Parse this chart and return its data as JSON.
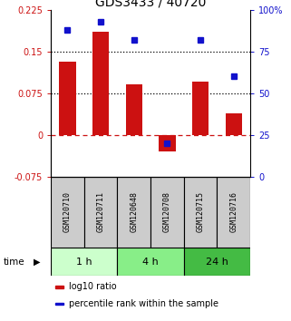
{
  "title": "GDS3433 / 40720",
  "samples": [
    "GSM120710",
    "GSM120711",
    "GSM120648",
    "GSM120708",
    "GSM120715",
    "GSM120716"
  ],
  "log10_ratio": [
    0.132,
    0.185,
    0.09,
    -0.03,
    0.095,
    0.038
  ],
  "percentile_rank": [
    88,
    93,
    82,
    20,
    82,
    60
  ],
  "ylim_left": [
    -0.075,
    0.225
  ],
  "ylim_right": [
    0,
    100
  ],
  "yticks_left": [
    -0.075,
    0,
    0.075,
    0.15,
    0.225
  ],
  "ytick_labels_left": [
    "-0.075",
    "0",
    "0.075",
    "0.15",
    "0.225"
  ],
  "yticks_right": [
    0,
    25,
    50,
    75,
    100
  ],
  "ytick_labels_right": [
    "0",
    "25",
    "50",
    "75",
    "100%"
  ],
  "hlines_dotted": [
    0.075,
    0.15
  ],
  "hline_dashed": 0,
  "bar_color": "#cc1111",
  "point_color": "#1111cc",
  "time_groups": [
    {
      "label": "1 h",
      "start": 0,
      "end": 2,
      "color": "#ccffcc"
    },
    {
      "label": "4 h",
      "start": 2,
      "end": 4,
      "color": "#88ee88"
    },
    {
      "label": "24 h",
      "start": 4,
      "end": 6,
      "color": "#44bb44"
    }
  ],
  "legend_bar_label": "log10 ratio",
  "legend_point_label": "percentile rank within the sample",
  "title_fontsize": 10,
  "tick_fontsize": 7,
  "sample_fontsize": 6,
  "time_fontsize": 8,
  "legend_fontsize": 7
}
